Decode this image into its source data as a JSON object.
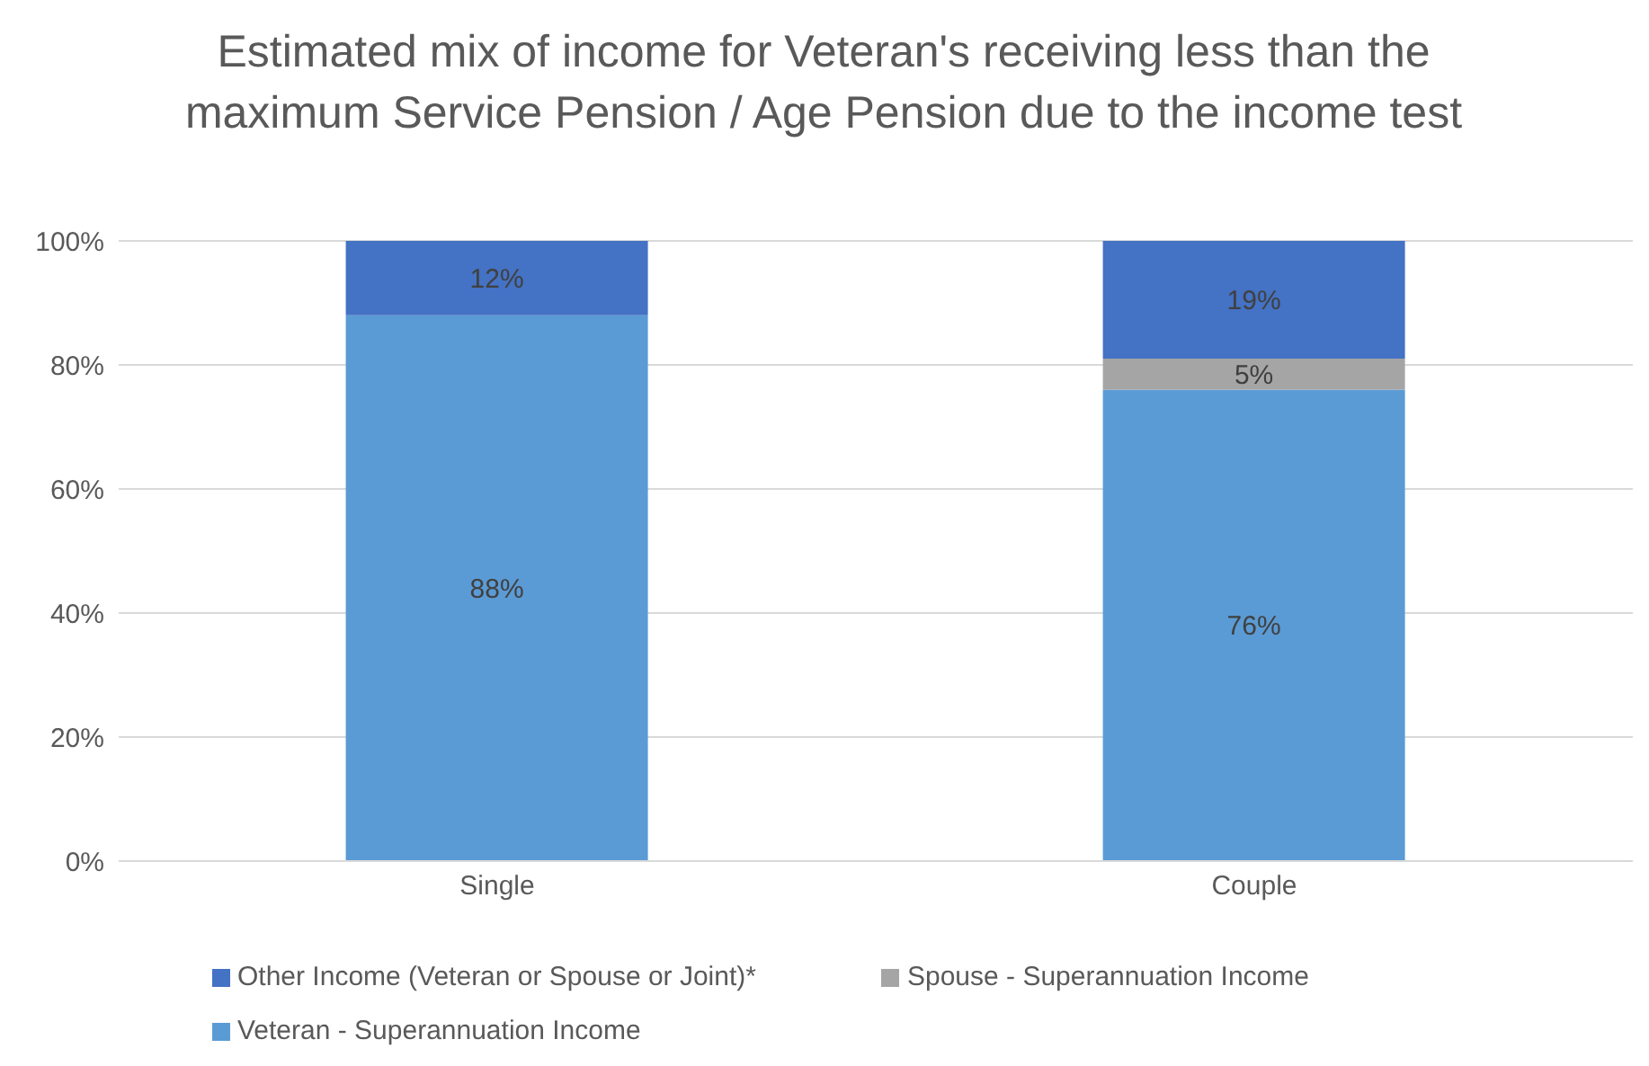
{
  "chart_data": {
    "type": "bar",
    "title": "Estimated mix of income for Veteran's receiving less than the maximum Service Pension / Age Pension due to the income test",
    "categories": [
      "Single",
      "Couple"
    ],
    "series": [
      {
        "name": "Veteran - Superannuation Income",
        "color": "#5b9bd5",
        "values": [
          88,
          76
        ],
        "value_labels": [
          "88%",
          "76%"
        ]
      },
      {
        "name": "Spouse - Superannuation Income",
        "color": "#a5a5a5",
        "values": [
          null,
          5
        ],
        "value_labels": [
          null,
          "5%"
        ]
      },
      {
        "name": "Other Income (Veteran or Spouse or Joint)*",
        "color": "#4472c4",
        "values": [
          12,
          19
        ],
        "value_labels": [
          "12%",
          "19%"
        ]
      }
    ],
    "stacked": true,
    "ylim": [
      0,
      100
    ],
    "yticks": [
      {
        "value": 0,
        "label": "0%"
      },
      {
        "value": 20,
        "label": "20%"
      },
      {
        "value": 40,
        "label": "40%"
      },
      {
        "value": 60,
        "label": "60%"
      },
      {
        "value": 80,
        "label": "80%"
      },
      {
        "value": 100,
        "label": "100%"
      }
    ],
    "grid": "y",
    "legend": "bottom"
  }
}
